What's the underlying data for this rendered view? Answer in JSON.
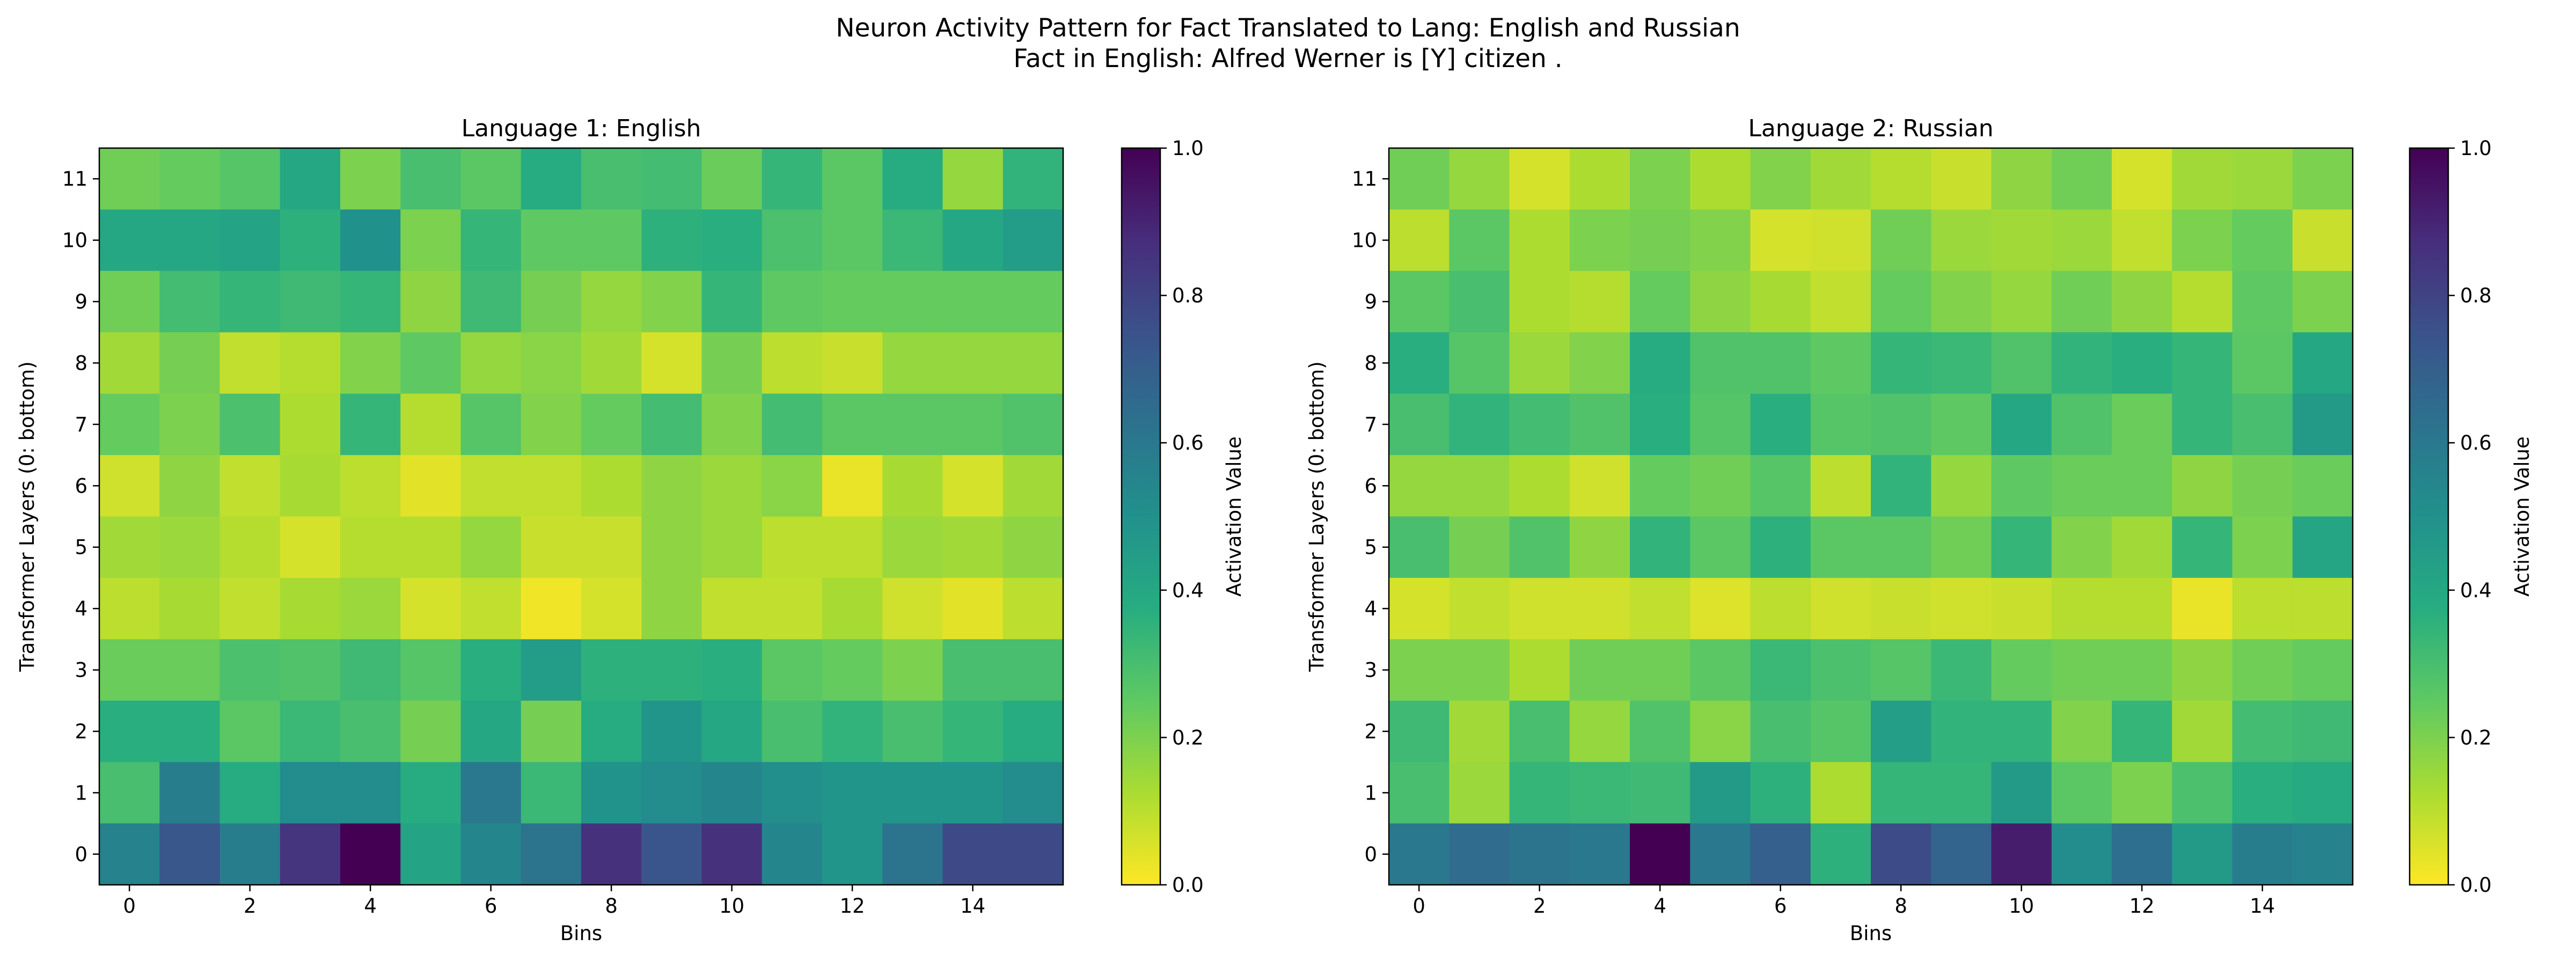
{
  "title_line1": "Neuron Activity Pattern for Fact Translated to Lang: English and Russian",
  "title_line2": "Fact in English: Alfred Werner is [Y] citizen .",
  "colormap": "viridis_r",
  "chart_data": [
    {
      "type": "heatmap",
      "title": "Language 1: English",
      "xlabel": "Bins",
      "ylabel": "Transformer Layers (0: bottom)",
      "colorbar_label": "Activation Value",
      "vmin": 0.0,
      "vmax": 1.0,
      "x_ticks": [
        "0",
        "2",
        "4",
        "6",
        "8",
        "10",
        "12",
        "14"
      ],
      "y_ticks": [
        "0",
        "1",
        "2",
        "3",
        "4",
        "5",
        "6",
        "7",
        "8",
        "9",
        "10",
        "11"
      ],
      "colorbar_ticks": [
        "0.0",
        "0.2",
        "0.4",
        "0.6",
        "0.8",
        "1.0"
      ],
      "rows_top_to_bottom": [
        [
          0.22,
          0.24,
          0.27,
          0.4,
          0.2,
          0.3,
          0.26,
          0.38,
          0.3,
          0.31,
          0.23,
          0.34,
          0.26,
          0.38,
          0.16,
          0.35
        ],
        [
          0.4,
          0.4,
          0.42,
          0.36,
          0.5,
          0.2,
          0.34,
          0.25,
          0.25,
          0.36,
          0.37,
          0.29,
          0.26,
          0.33,
          0.4,
          0.45
        ],
        [
          0.22,
          0.31,
          0.34,
          0.32,
          0.34,
          0.17,
          0.32,
          0.21,
          0.16,
          0.19,
          0.34,
          0.25,
          0.24,
          0.24,
          0.24,
          0.24
        ],
        [
          0.14,
          0.21,
          0.09,
          0.11,
          0.19,
          0.25,
          0.16,
          0.18,
          0.14,
          0.06,
          0.21,
          0.1,
          0.08,
          0.16,
          0.16,
          0.16
        ],
        [
          0.24,
          0.2,
          0.29,
          0.12,
          0.34,
          0.11,
          0.27,
          0.19,
          0.24,
          0.31,
          0.19,
          0.31,
          0.26,
          0.26,
          0.26,
          0.28
        ],
        [
          0.07,
          0.17,
          0.09,
          0.13,
          0.1,
          0.04,
          0.09,
          0.09,
          0.12,
          0.17,
          0.15,
          0.18,
          0.03,
          0.13,
          0.06,
          0.14
        ],
        [
          0.14,
          0.15,
          0.11,
          0.06,
          0.11,
          0.11,
          0.16,
          0.08,
          0.08,
          0.17,
          0.15,
          0.1,
          0.1,
          0.15,
          0.14,
          0.17
        ],
        [
          0.1,
          0.13,
          0.09,
          0.13,
          0.15,
          0.06,
          0.09,
          0.02,
          0.06,
          0.17,
          0.09,
          0.09,
          0.13,
          0.07,
          0.04,
          0.1
        ],
        [
          0.23,
          0.23,
          0.29,
          0.28,
          0.32,
          0.27,
          0.37,
          0.45,
          0.36,
          0.36,
          0.37,
          0.26,
          0.24,
          0.2,
          0.3,
          0.3
        ],
        [
          0.37,
          0.37,
          0.26,
          0.33,
          0.3,
          0.21,
          0.4,
          0.21,
          0.38,
          0.48,
          0.4,
          0.3,
          0.35,
          0.3,
          0.34,
          0.38
        ],
        [
          0.3,
          0.58,
          0.38,
          0.52,
          0.52,
          0.38,
          0.6,
          0.33,
          0.49,
          0.52,
          0.55,
          0.51,
          0.48,
          0.48,
          0.48,
          0.52
        ],
        [
          0.56,
          0.73,
          0.58,
          0.85,
          1.0,
          0.42,
          0.55,
          0.62,
          0.86,
          0.74,
          0.86,
          0.55,
          0.48,
          0.62,
          0.78,
          0.78
        ]
      ]
    },
    {
      "type": "heatmap",
      "title": "Language 2: Russian",
      "xlabel": "Bins",
      "ylabel": "Transformer Layers (0: bottom)",
      "colorbar_label": "Activation Value",
      "vmin": 0.0,
      "vmax": 1.0,
      "x_ticks": [
        "0",
        "2",
        "4",
        "6",
        "8",
        "10",
        "12",
        "14"
      ],
      "y_ticks": [
        "0",
        "1",
        "2",
        "3",
        "4",
        "5",
        "6",
        "7",
        "8",
        "9",
        "10",
        "11"
      ],
      "colorbar_ticks": [
        "0.0",
        "0.2",
        "0.4",
        "0.6",
        "0.8",
        "1.0"
      ],
      "rows_top_to_bottom": [
        [
          0.22,
          0.16,
          0.06,
          0.12,
          0.2,
          0.12,
          0.19,
          0.14,
          0.11,
          0.08,
          0.17,
          0.22,
          0.06,
          0.14,
          0.15,
          0.2
        ],
        [
          0.1,
          0.26,
          0.12,
          0.2,
          0.21,
          0.19,
          0.06,
          0.07,
          0.22,
          0.15,
          0.14,
          0.15,
          0.09,
          0.2,
          0.24,
          0.08
        ],
        [
          0.26,
          0.3,
          0.12,
          0.11,
          0.24,
          0.17,
          0.13,
          0.09,
          0.24,
          0.19,
          0.16,
          0.22,
          0.17,
          0.11,
          0.25,
          0.2
        ],
        [
          0.37,
          0.27,
          0.15,
          0.19,
          0.38,
          0.28,
          0.28,
          0.25,
          0.34,
          0.33,
          0.28,
          0.35,
          0.37,
          0.34,
          0.26,
          0.4
        ],
        [
          0.3,
          0.35,
          0.31,
          0.28,
          0.37,
          0.27,
          0.37,
          0.27,
          0.28,
          0.25,
          0.4,
          0.28,
          0.23,
          0.34,
          0.3,
          0.46
        ],
        [
          0.16,
          0.16,
          0.12,
          0.07,
          0.24,
          0.22,
          0.27,
          0.1,
          0.35,
          0.16,
          0.25,
          0.23,
          0.23,
          0.17,
          0.21,
          0.23
        ],
        [
          0.3,
          0.21,
          0.28,
          0.17,
          0.35,
          0.26,
          0.36,
          0.26,
          0.26,
          0.22,
          0.34,
          0.19,
          0.14,
          0.34,
          0.2,
          0.41
        ],
        [
          0.06,
          0.09,
          0.07,
          0.07,
          0.09,
          0.05,
          0.1,
          0.07,
          0.08,
          0.07,
          0.08,
          0.11,
          0.11,
          0.03,
          0.1,
          0.1
        ],
        [
          0.2,
          0.2,
          0.12,
          0.22,
          0.22,
          0.26,
          0.33,
          0.29,
          0.27,
          0.33,
          0.24,
          0.22,
          0.22,
          0.17,
          0.22,
          0.24
        ],
        [
          0.32,
          0.14,
          0.3,
          0.16,
          0.28,
          0.18,
          0.3,
          0.27,
          0.44,
          0.35,
          0.35,
          0.19,
          0.34,
          0.14,
          0.31,
          0.32
        ],
        [
          0.3,
          0.15,
          0.34,
          0.33,
          0.32,
          0.46,
          0.36,
          0.12,
          0.34,
          0.34,
          0.46,
          0.26,
          0.2,
          0.29,
          0.37,
          0.39
        ],
        [
          0.6,
          0.65,
          0.62,
          0.6,
          1.0,
          0.6,
          0.7,
          0.36,
          0.77,
          0.68,
          0.92,
          0.52,
          0.64,
          0.46,
          0.58,
          0.56
        ]
      ]
    }
  ]
}
